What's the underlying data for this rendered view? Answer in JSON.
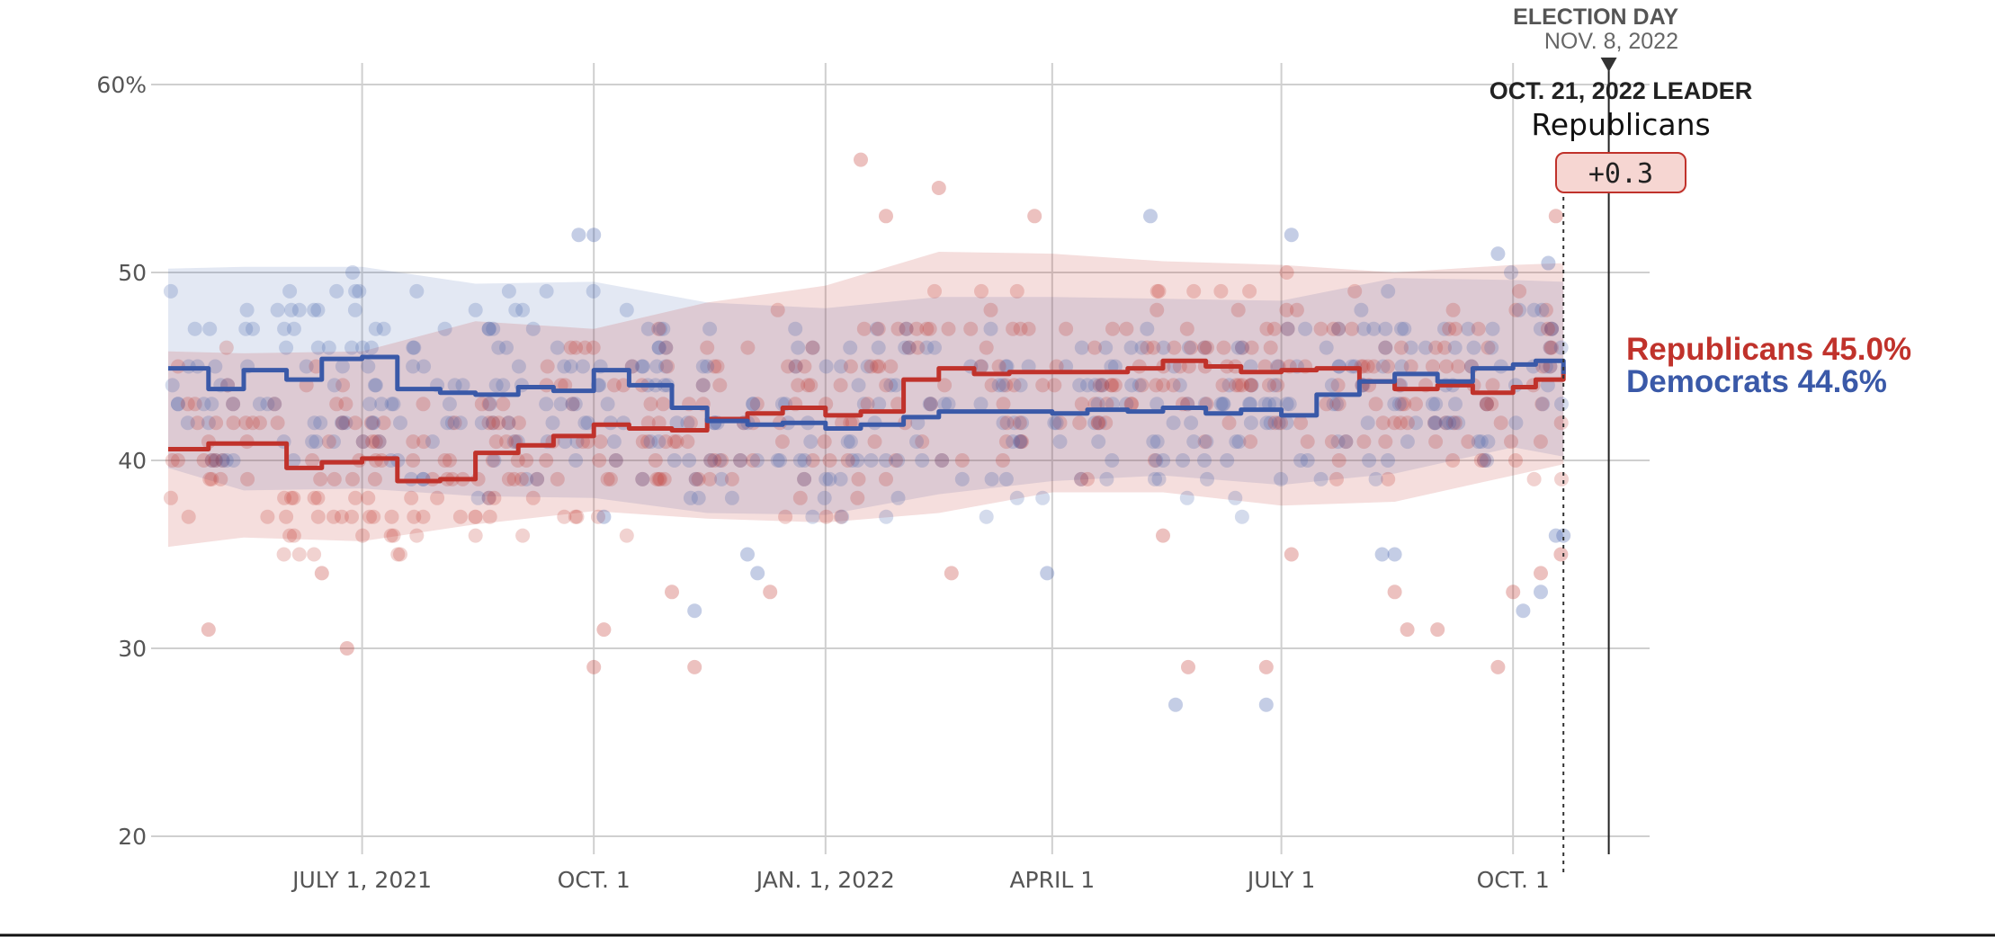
{
  "chart_data": {
    "type": "line",
    "title": "",
    "xlabel": "",
    "ylabel": "",
    "ylim": [
      20,
      60
    ],
    "xlim": [
      "2021-04-15",
      "2022-11-12"
    ],
    "y_ticks": [
      {
        "value": 60,
        "label": "60%"
      },
      {
        "value": 50,
        "label": "50"
      },
      {
        "value": 40,
        "label": "40"
      },
      {
        "value": 30,
        "label": "30"
      },
      {
        "value": 20,
        "label": "20"
      }
    ],
    "x_ticks": [
      {
        "date": "2021-07-01",
        "label": "JULY 1, 2021"
      },
      {
        "date": "2021-10-01",
        "label": "OCT. 1"
      },
      {
        "date": "2022-01-01",
        "label": "JAN. 1, 2022"
      },
      {
        "date": "2022-04-01",
        "label": "APRIL 1"
      },
      {
        "date": "2022-07-01",
        "label": "JULY 1"
      },
      {
        "date": "2022-10-01",
        "label": "OCT. 1"
      }
    ],
    "grid": true,
    "colors": {
      "republicans": "#c0322b",
      "democrats": "#3a59a8",
      "grid": "#cfcfcf"
    },
    "series": [
      {
        "name": "Republicans",
        "color": "#c0322b",
        "dates": [
          "2021-04-15",
          "2021-05-01",
          "2021-05-15",
          "2021-06-01",
          "2021-06-15",
          "2021-07-01",
          "2021-07-15",
          "2021-08-01",
          "2021-08-15",
          "2021-09-01",
          "2021-09-15",
          "2021-10-01",
          "2021-10-15",
          "2021-11-01",
          "2021-11-15",
          "2021-12-01",
          "2021-12-15",
          "2022-01-01",
          "2022-01-15",
          "2022-02-01",
          "2022-02-15",
          "2022-03-01",
          "2022-03-15",
          "2022-04-01",
          "2022-04-15",
          "2022-05-01",
          "2022-05-15",
          "2022-06-01",
          "2022-06-15",
          "2022-07-01",
          "2022-07-15",
          "2022-08-01",
          "2022-08-15",
          "2022-09-01",
          "2022-09-15",
          "2022-10-01",
          "2022-10-10",
          "2022-10-21"
        ],
        "values": [
          40.6,
          40.9,
          40.9,
          39.6,
          39.9,
          40.1,
          38.9,
          39.0,
          40.4,
          40.8,
          41.3,
          41.9,
          41.7,
          41.6,
          42.2,
          42.5,
          42.8,
          42.4,
          42.6,
          44.3,
          44.9,
          44.6,
          44.7,
          44.7,
          44.7,
          44.9,
          45.3,
          45.0,
          44.7,
          44.8,
          44.9,
          44.2,
          43.8,
          44.0,
          43.6,
          43.9,
          44.3,
          45.0
        ],
        "end_label": "Republicans 45.0%"
      },
      {
        "name": "Democrats",
        "color": "#3a59a8",
        "dates": [
          "2021-04-15",
          "2021-05-01",
          "2021-05-15",
          "2021-06-01",
          "2021-06-15",
          "2021-07-01",
          "2021-07-15",
          "2021-08-01",
          "2021-08-15",
          "2021-09-01",
          "2021-09-15",
          "2021-10-01",
          "2021-10-15",
          "2021-11-01",
          "2021-11-15",
          "2021-12-01",
          "2021-12-15",
          "2022-01-01",
          "2022-01-15",
          "2022-02-01",
          "2022-02-15",
          "2022-03-01",
          "2022-03-15",
          "2022-04-01",
          "2022-04-15",
          "2022-05-01",
          "2022-05-15",
          "2022-06-01",
          "2022-06-15",
          "2022-07-01",
          "2022-07-15",
          "2022-08-01",
          "2022-08-15",
          "2022-09-01",
          "2022-09-15",
          "2022-10-01",
          "2022-10-10",
          "2022-10-21"
        ],
        "values": [
          44.9,
          43.8,
          44.8,
          44.3,
          45.4,
          45.5,
          43.8,
          43.6,
          43.5,
          43.9,
          43.7,
          44.8,
          44.0,
          42.8,
          42.1,
          41.9,
          42.0,
          41.7,
          41.9,
          42.3,
          42.6,
          42.6,
          42.6,
          42.5,
          42.7,
          42.6,
          42.8,
          42.5,
          42.7,
          42.4,
          43.5,
          44.2,
          44.6,
          44.2,
          44.9,
          45.1,
          45.3,
          44.6
        ],
        "end_label": "Democrats 44.6%"
      }
    ],
    "bands": [
      {
        "name": "Democrats range",
        "color": "#3a59a8",
        "dates": [
          "2021-04-15",
          "2021-05-15",
          "2021-07-01",
          "2021-08-15",
          "2021-10-01",
          "2021-11-15",
          "2022-01-01",
          "2022-02-15",
          "2022-04-01",
          "2022-05-15",
          "2022-07-01",
          "2022-08-15",
          "2022-10-01",
          "2022-10-21"
        ],
        "upper": [
          50.2,
          50.3,
          50.3,
          49.4,
          49.5,
          48.4,
          48.1,
          48.7,
          48.7,
          48.6,
          48.5,
          49.7,
          49.6,
          49.5
        ],
        "lower": [
          39.6,
          38.4,
          38.5,
          38.1,
          38.0,
          37.2,
          37.1,
          38.2,
          38.9,
          39.2,
          38.7,
          39.3,
          40.7,
          40.2
        ]
      },
      {
        "name": "Republicans range",
        "color": "#c0322b",
        "dates": [
          "2021-04-15",
          "2021-05-15",
          "2021-07-01",
          "2021-08-15",
          "2021-10-01",
          "2021-11-15",
          "2022-01-01",
          "2022-02-15",
          "2022-04-01",
          "2022-05-15",
          "2022-07-01",
          "2022-08-15",
          "2022-10-01",
          "2022-10-21"
        ],
        "upper": [
          45.8,
          45.7,
          45.8,
          47.4,
          47.0,
          48.4,
          49.3,
          51.1,
          51.0,
          50.6,
          50.4,
          50.0,
          50.4,
          50.5
        ],
        "lower": [
          35.4,
          35.9,
          35.7,
          36.6,
          37.3,
          36.9,
          36.7,
          37.2,
          38.3,
          38.3,
          37.6,
          37.8,
          39.2,
          39.8
        ]
      }
    ],
    "poll_dots_approx": {
      "note": "individual poll results (approximate sample)",
      "republicans": [
        [
          "2021-05-01",
          31
        ],
        [
          "2021-06-15",
          34
        ],
        [
          "2021-06-25",
          30
        ],
        [
          "2021-08-15",
          37
        ],
        [
          "2021-10-01",
          29
        ],
        [
          "2021-10-05",
          31
        ],
        [
          "2021-11-01",
          33
        ],
        [
          "2021-11-10",
          29
        ],
        [
          "2021-12-10",
          33
        ],
        [
          "2022-01-15",
          56
        ],
        [
          "2022-01-25",
          53
        ],
        [
          "2022-02-15",
          54.5
        ],
        [
          "2022-02-20",
          34
        ],
        [
          "2022-03-25",
          53
        ],
        [
          "2022-05-15",
          36
        ],
        [
          "2022-05-25",
          29
        ],
        [
          "2022-06-25",
          29
        ],
        [
          "2022-07-05",
          35
        ],
        [
          "2022-08-15",
          33
        ],
        [
          "2022-08-20",
          31
        ],
        [
          "2022-09-01",
          31
        ],
        [
          "2022-09-25",
          29
        ],
        [
          "2022-10-01",
          33
        ],
        [
          "2022-10-12",
          34
        ],
        [
          "2022-10-18",
          53
        ],
        [
          "2022-10-20",
          35
        ]
      ],
      "democrats": [
        [
          "2021-09-25",
          52
        ],
        [
          "2021-10-01",
          52
        ],
        [
          "2021-10-05",
          37
        ],
        [
          "2021-11-10",
          32
        ],
        [
          "2021-12-01",
          35
        ],
        [
          "2021-12-05",
          34
        ],
        [
          "2022-03-30",
          34
        ],
        [
          "2022-05-10",
          53
        ],
        [
          "2022-05-20",
          27
        ],
        [
          "2022-06-25",
          27
        ],
        [
          "2022-07-05",
          52
        ],
        [
          "2022-08-10",
          35
        ],
        [
          "2022-08-15",
          35
        ],
        [
          "2022-09-25",
          51
        ],
        [
          "2022-10-05",
          32
        ],
        [
          "2022-10-12",
          33
        ],
        [
          "2022-10-15",
          50.5
        ],
        [
          "2022-10-18",
          36
        ],
        [
          "2022-10-21",
          36
        ]
      ]
    }
  },
  "annotations": {
    "election_day_label": "ELECTION DAY",
    "election_day_date": "NOV. 8, 2022",
    "election_date": "2022-11-08",
    "current_date": "2022-10-21",
    "leader_date_label": "OCT. 21, 2022 LEADER",
    "leader_party": "Republicans",
    "leader_margin": "+0.3"
  }
}
